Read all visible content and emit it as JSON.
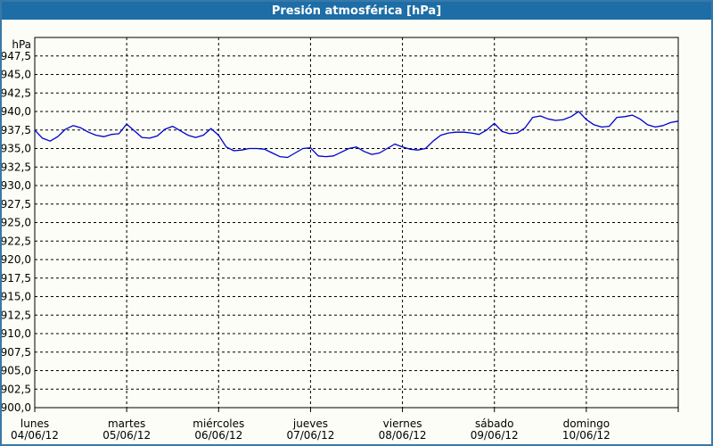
{
  "window": {
    "title": "Presión atmosférica [hPa]"
  },
  "colors": {
    "titlebar": "#1D6DA6",
    "outer_border": "#3879A9",
    "background": "#FBFDF6",
    "grid": "#000000",
    "text": "#000000",
    "line": "#0000CC"
  },
  "chart_data": {
    "type": "line",
    "title": "Presión atmosférica [hPa]",
    "ylabel": "hPa",
    "ylim": [
      900,
      950
    ],
    "grid": true,
    "legend": "none",
    "yticks": [
      "900,0",
      "902,5",
      "905,0",
      "907,5",
      "910,0",
      "912,5",
      "915,0",
      "917,5",
      "920,0",
      "922,5",
      "925,0",
      "927,5",
      "930,0",
      "932,5",
      "935,0",
      "937,5",
      "940,0",
      "942,5",
      "945,0",
      "947,5"
    ],
    "x_categories": [
      {
        "day": "lunes",
        "date": "04/06/12"
      },
      {
        "day": "martes",
        "date": "05/06/12"
      },
      {
        "day": "miércoles",
        "date": "06/06/12"
      },
      {
        "day": "jueves",
        "date": "07/06/12"
      },
      {
        "day": "viernes",
        "date": "08/06/12"
      },
      {
        "day": "sábado",
        "date": "09/06/12"
      },
      {
        "day": "domingo",
        "date": "10/06/12"
      }
    ],
    "samples_per_day": 12,
    "series": [
      {
        "name": "Presión atmosférica",
        "color": "#0000CC",
        "values": [
          937.5,
          936.4,
          936.0,
          936.6,
          937.6,
          938.1,
          937.8,
          937.2,
          936.8,
          936.6,
          936.9,
          937.0,
          938.3,
          937.4,
          936.5,
          936.4,
          936.7,
          937.6,
          938.0,
          937.4,
          936.8,
          936.5,
          936.8,
          937.7,
          936.8,
          935.2,
          934.7,
          934.8,
          935.0,
          935.0,
          934.9,
          934.4,
          933.9,
          933.8,
          934.4,
          935.0,
          935.1,
          934.0,
          933.9,
          934.0,
          934.5,
          935.0,
          935.2,
          934.6,
          934.2,
          934.4,
          935.0,
          935.6,
          935.2,
          934.9,
          934.8,
          935.0,
          936.0,
          936.8,
          937.1,
          937.2,
          937.2,
          937.1,
          936.9,
          937.5,
          938.4,
          937.3,
          937.0,
          937.1,
          937.8,
          939.2,
          939.4,
          939.0,
          938.8,
          938.9,
          939.3,
          940.0,
          938.9,
          938.2,
          937.9,
          938.0,
          939.2,
          939.3,
          939.5,
          939.0,
          938.2,
          937.9,
          938.1,
          938.5,
          938.7
        ]
      }
    ]
  }
}
